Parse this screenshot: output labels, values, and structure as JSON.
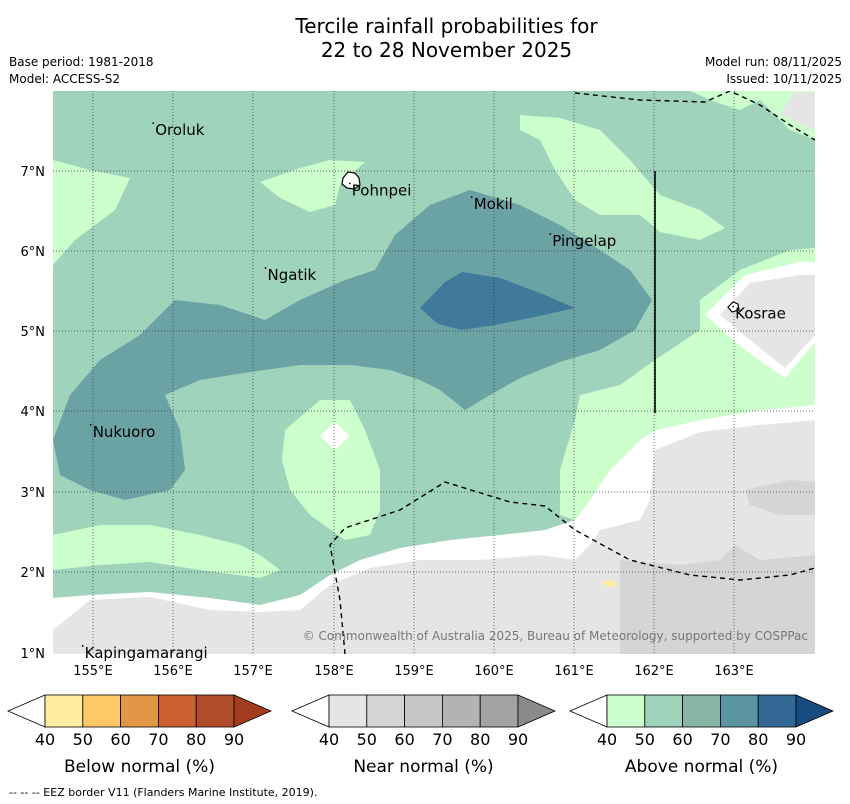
{
  "title_line1": "Tercile rainfall probabilities for",
  "title_line2": "22 to 28 November 2025",
  "meta": {
    "base_period": "Base period: 1981-2018",
    "model": "Model: ACCESS-S2",
    "model_run": "Model run: 08/11/2025",
    "issued": "Issued: 10/11/2025"
  },
  "map": {
    "lon_range": [
      154.5,
      164.0
    ],
    "lat_range": [
      1.0,
      8.0
    ],
    "lon_ticks": [
      "155°E",
      "156°E",
      "157°E",
      "158°E",
      "159°E",
      "160°E",
      "161°E",
      "162°E",
      "163°E"
    ],
    "lat_ticks": [
      "1°N",
      "2°N",
      "3°N",
      "4°N",
      "5°N",
      "6°N",
      "7°N"
    ],
    "places": [
      {
        "name": "Oroluk",
        "lon": 155.75,
        "lat": 7.6
      },
      {
        "name": "Pohnpei",
        "lon": 158.2,
        "lat": 6.85
      },
      {
        "name": "Mokil",
        "lon": 159.72,
        "lat": 6.68
      },
      {
        "name": "Pingelap",
        "lon": 160.7,
        "lat": 6.22
      },
      {
        "name": "Ngatik",
        "lon": 157.15,
        "lat": 5.8
      },
      {
        "name": "Kosrae",
        "lon": 162.98,
        "lat": 5.32
      },
      {
        "name": "Nukuoro",
        "lon": 154.97,
        "lat": 3.85
      },
      {
        "name": "Kapingamarangi",
        "lon": 154.87,
        "lat": 1.1
      }
    ],
    "copyright": "© Commonwealth of Australia 2025, Bureau of Meteorology, supported by COSPPac"
  },
  "colorbars": [
    {
      "label": "Below normal (%)",
      "colors": [
        "#ffeea0",
        "#fdc967",
        "#e29747",
        "#ca6030",
        "#b04c2a",
        "#a33c1f"
      ],
      "ticks": [
        "40",
        "50",
        "60",
        "70",
        "80",
        "90"
      ]
    },
    {
      "label": "Near normal (%)",
      "colors": [
        "#e5e5e5",
        "#d5d5d5",
        "#c6c6c6",
        "#b3b3b3",
        "#a2a2a2",
        "#8a8a8a"
      ],
      "ticks": [
        "40",
        "50",
        "60",
        "70",
        "80",
        "90"
      ]
    },
    {
      "label": "Above normal (%)",
      "colors": [
        "#ccffcc",
        "#9fd3bb",
        "#87b6a9",
        "#5b95a3",
        "#336895",
        "#174c80"
      ],
      "ticks": [
        "40",
        "50",
        "60",
        "70",
        "80",
        "90"
      ]
    }
  ],
  "footnote": "--  --  -- EEZ border V11 (Flanders Marine Institute, 2019).",
  "colors": {
    "above_40": "#ccffcc",
    "above_50": "#9fd3bb",
    "above_60": "#87b6a9",
    "above_70": "#6ba3a5",
    "above_80": "#3f7a9a",
    "near_40": "#e5e5e5",
    "near_50": "#d8d8d8"
  }
}
